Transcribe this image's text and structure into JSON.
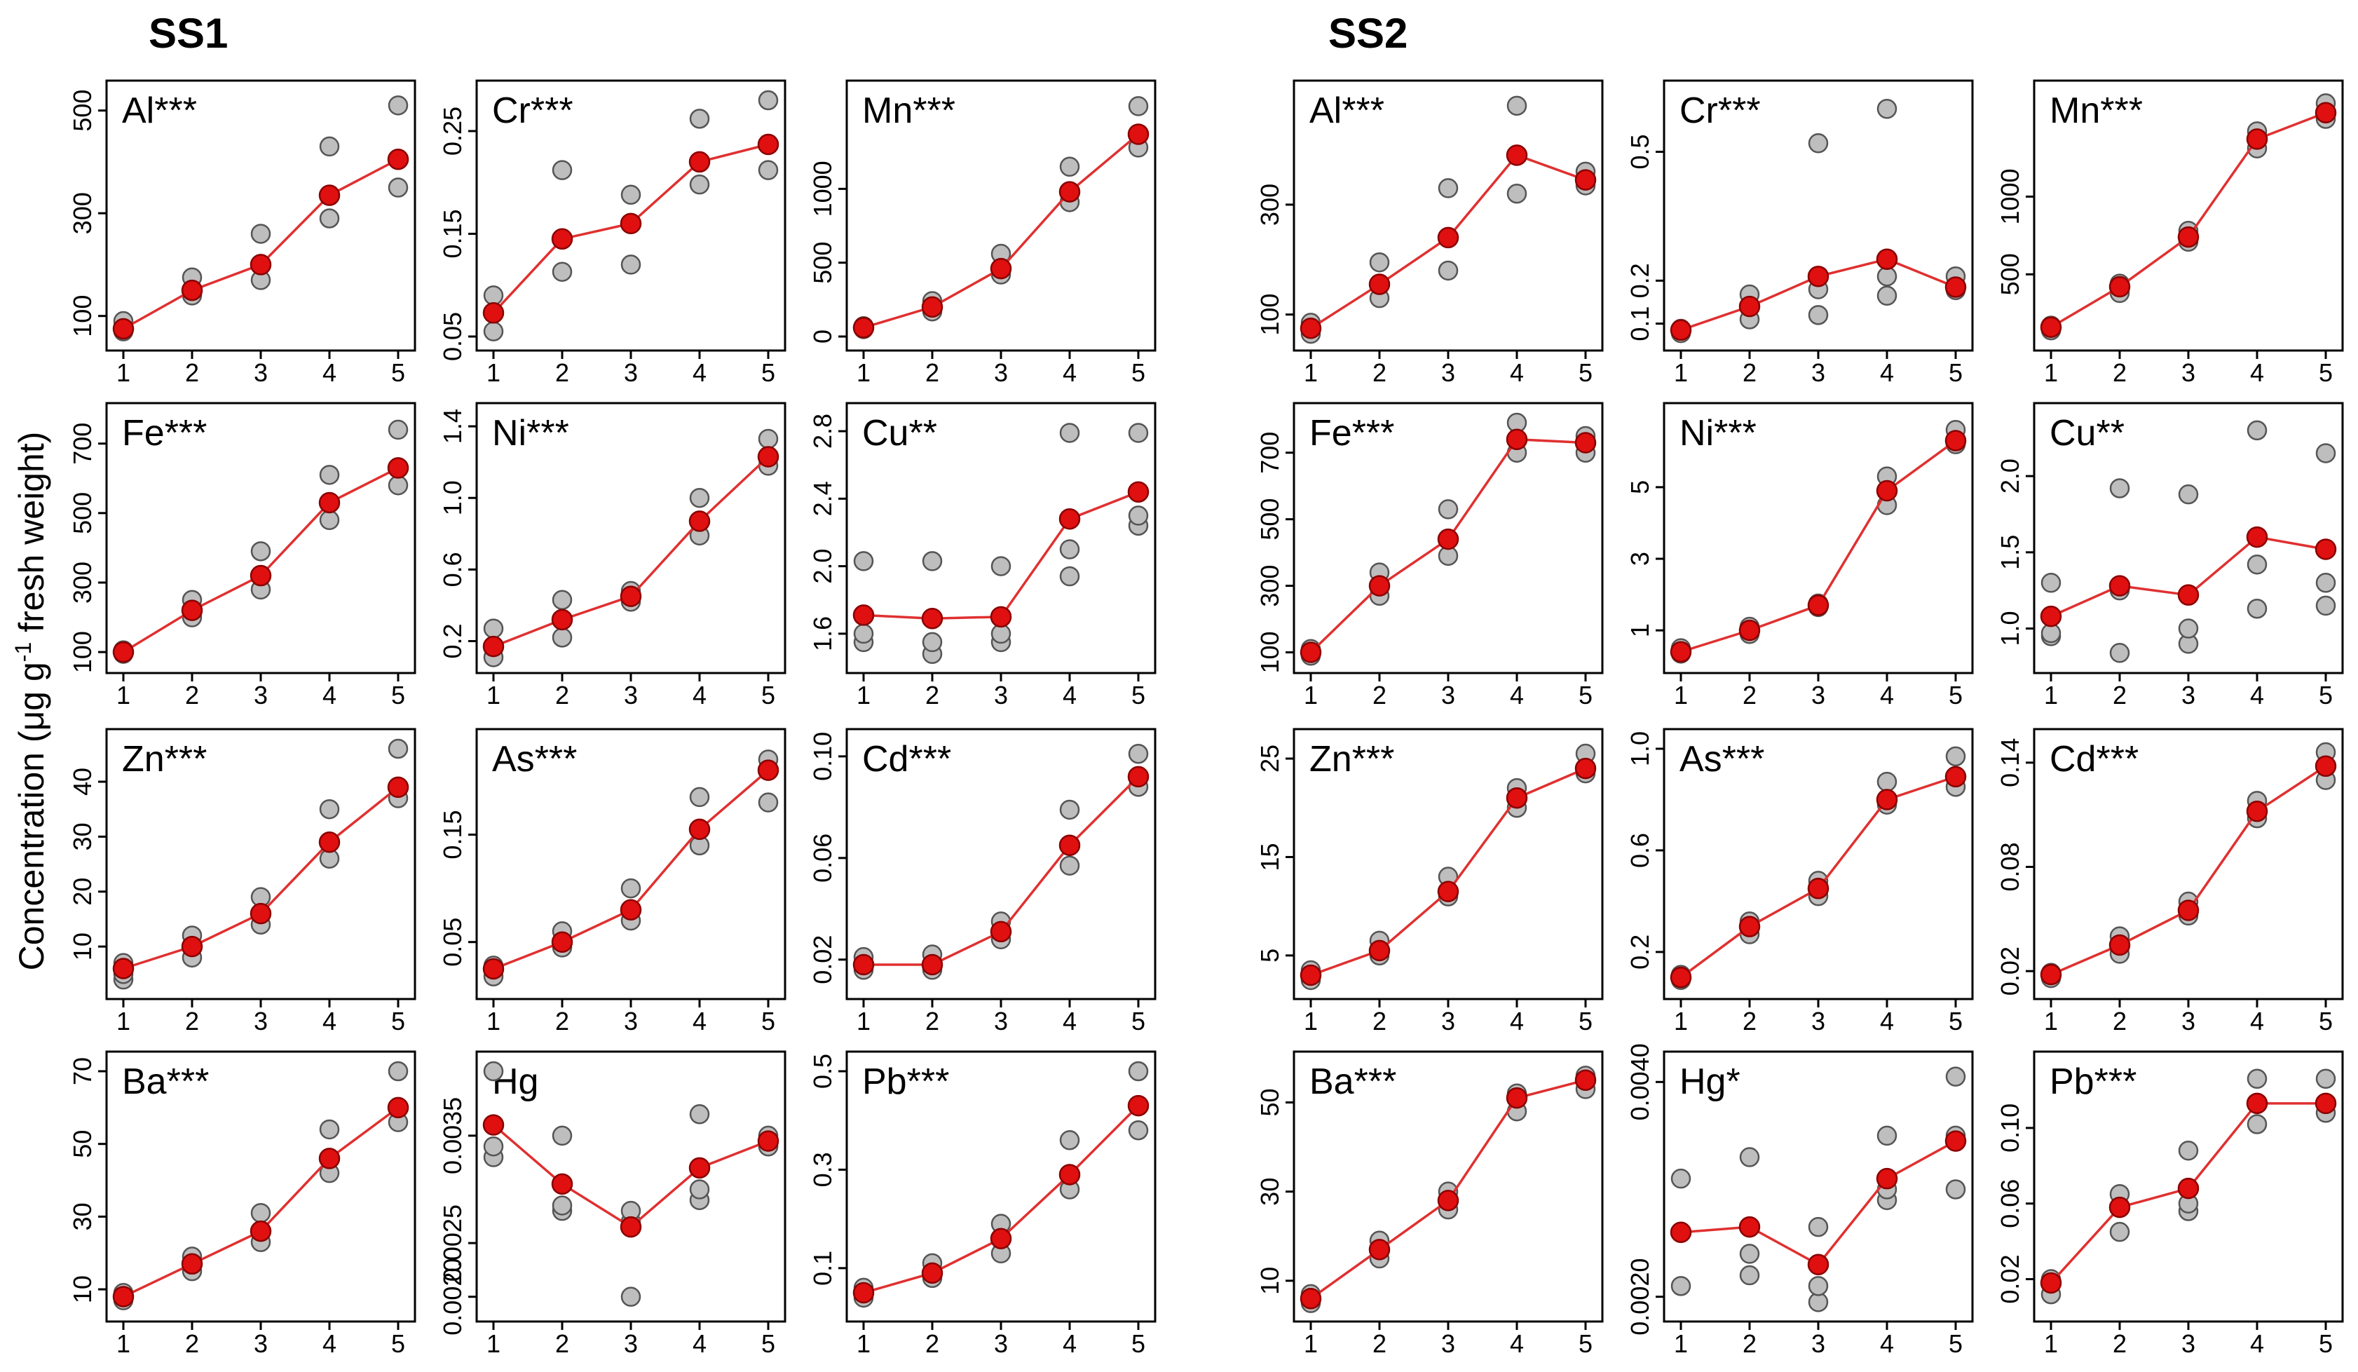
{
  "figure": {
    "ylabel": "Concentration (μg g",
    "ylabel_sup": "-1",
    "ylabel_tail": " fresh  weight)",
    "set_titles": [
      "SS1",
      "SS2"
    ]
  },
  "colors": {
    "replicate_fill": "#bebebe",
    "replicate_stroke": "#555555",
    "mean_fill": "#e01010",
    "mean_stroke": "#8a0000",
    "line": "#e03030",
    "axis": "#000000"
  },
  "chart_data": [
    {
      "set": "SS1",
      "type": "line",
      "title": "Al",
      "sig": "***",
      "categories": [
        "1",
        "2",
        "3",
        "4",
        "5"
      ],
      "ylim": [
        60,
        520
      ],
      "yticks": [
        100,
        300,
        500
      ],
      "mean": [
        75,
        150,
        200,
        335,
        405
      ],
      "points": [
        [
          70,
          80,
          90
        ],
        [
          140,
          150,
          175
        ],
        [
          170,
          200,
          260
        ],
        [
          290,
          335,
          430
        ],
        [
          350,
          405,
          510
        ]
      ]
    },
    {
      "set": "SS1",
      "type": "line",
      "title": "Cr",
      "sig": "***",
      "categories": [
        "1",
        "2",
        "3",
        "4",
        "5"
      ],
      "ylim": [
        0.05,
        0.28
      ],
      "yticks": [
        0.05,
        0.15,
        0.25
      ],
      "ytick_labels": [
        "0.05",
        "0.15",
        "0.25"
      ],
      "mean": [
        0.073,
        0.145,
        0.16,
        0.22,
        0.237
      ],
      "points": [
        [
          0.055,
          0.073,
          0.09
        ],
        [
          0.113,
          0.145,
          0.212
        ],
        [
          0.12,
          0.16,
          0.188
        ],
        [
          0.198,
          0.22,
          0.262
        ],
        [
          0.212,
          0.237,
          0.28
        ]
      ]
    },
    {
      "set": "SS1",
      "type": "line",
      "title": "Mn",
      "sig": "***",
      "categories": [
        "1",
        "2",
        "3",
        "4",
        "5"
      ],
      "ylim": [
        0,
        1600
      ],
      "yticks": [
        0,
        500,
        1000
      ],
      "mean": [
        60,
        200,
        460,
        980,
        1370
      ],
      "points": [
        [
          50,
          60,
          70
        ],
        [
          170,
          200,
          240
        ],
        [
          420,
          460,
          560
        ],
        [
          910,
          980,
          1150
        ],
        [
          1280,
          1370,
          1560
        ]
      ]
    },
    {
      "set": "SS1",
      "type": "line",
      "title": "Fe",
      "sig": "***",
      "categories": [
        "1",
        "2",
        "3",
        "4",
        "5"
      ],
      "ylim": [
        80,
        760
      ],
      "yticks": [
        100,
        300,
        500,
        700
      ],
      "mean": [
        100,
        220,
        320,
        530,
        630
      ],
      "points": [
        [
          95,
          100,
          105
        ],
        [
          200,
          220,
          250
        ],
        [
          280,
          320,
          390
        ],
        [
          480,
          530,
          610
        ],
        [
          580,
          630,
          740
        ]
      ]
    },
    {
      "set": "SS1",
      "type": "line",
      "title": "Ni",
      "sig": "***",
      "categories": [
        "1",
        "2",
        "3",
        "4",
        "5"
      ],
      "ylim": [
        0.1,
        1.42
      ],
      "yticks": [
        0.2,
        0.6,
        1.0,
        1.4
      ],
      "ytick_labels": [
        "0.2",
        "0.6",
        "1.0",
        "1.4"
      ],
      "mean": [
        0.17,
        0.32,
        0.45,
        0.87,
        1.23
      ],
      "points": [
        [
          0.11,
          0.17,
          0.27
        ],
        [
          0.22,
          0.32,
          0.43
        ],
        [
          0.42,
          0.45,
          0.48
        ],
        [
          0.79,
          0.87,
          1.0
        ],
        [
          1.18,
          1.23,
          1.33
        ]
      ]
    },
    {
      "set": "SS1",
      "type": "line",
      "title": "Cu",
      "sig": "**",
      "categories": [
        "1",
        "2",
        "3",
        "4",
        "5"
      ],
      "ylim": [
        1.45,
        2.85
      ],
      "yticks": [
        1.6,
        2.0,
        2.4,
        2.8
      ],
      "ytick_labels": [
        "1.6",
        "2.0",
        "2.4",
        "2.8"
      ],
      "mean": [
        1.71,
        1.69,
        1.7,
        2.28,
        2.44
      ],
      "points": [
        [
          1.55,
          1.6,
          2.03
        ],
        [
          1.48,
          1.55,
          2.03
        ],
        [
          1.55,
          1.6,
          2.0
        ],
        [
          1.94,
          2.1,
          2.79
        ],
        [
          2.24,
          2.3,
          2.79
        ]
      ]
    },
    {
      "set": "SS1",
      "type": "line",
      "title": "Zn",
      "sig": "***",
      "categories": [
        "1",
        "2",
        "3",
        "4",
        "5"
      ],
      "ylim": [
        3,
        46
      ],
      "yticks": [
        10,
        20,
        30,
        40
      ],
      "mean": [
        6,
        10,
        16,
        29,
        39
      ],
      "points": [
        [
          4,
          5,
          7
        ],
        [
          8,
          10,
          12
        ],
        [
          14,
          16,
          19
        ],
        [
          26,
          29,
          35
        ],
        [
          37,
          39,
          46
        ]
      ]
    },
    {
      "set": "SS1",
      "type": "line",
      "title": "As",
      "sig": "***",
      "categories": [
        "1",
        "2",
        "3",
        "4",
        "5"
      ],
      "ylim": [
        0.01,
        0.23
      ],
      "yticks": [
        0.05,
        0.15
      ],
      "ytick_labels": [
        "0.05",
        "0.15"
      ],
      "mean": [
        0.025,
        0.05,
        0.08,
        0.155,
        0.21
      ],
      "points": [
        [
          0.018,
          0.025,
          0.028
        ],
        [
          0.045,
          0.05,
          0.06
        ],
        [
          0.07,
          0.08,
          0.1
        ],
        [
          0.14,
          0.155,
          0.185
        ],
        [
          0.18,
          0.21,
          0.22
        ]
      ]
    },
    {
      "set": "SS1",
      "type": "line",
      "title": "Cd",
      "sig": "***",
      "categories": [
        "1",
        "2",
        "3",
        "4",
        "5"
      ],
      "ylim": [
        0.01,
        0.103
      ],
      "yticks": [
        0.02,
        0.06,
        0.1
      ],
      "ytick_labels": [
        "0.02",
        "0.06",
        "0.10"
      ],
      "mean": [
        0.018,
        0.018,
        0.031,
        0.065,
        0.092
      ],
      "points": [
        [
          0.016,
          0.018,
          0.021
        ],
        [
          0.016,
          0.018,
          0.022
        ],
        [
          0.028,
          0.031,
          0.035
        ],
        [
          0.057,
          0.065,
          0.079
        ],
        [
          0.088,
          0.092,
          0.101
        ]
      ]
    },
    {
      "set": "SS1",
      "type": "line",
      "title": "Ba",
      "sig": "***",
      "categories": [
        "1",
        "2",
        "3",
        "4",
        "5"
      ],
      "ylim": [
        5,
        70
      ],
      "yticks": [
        10,
        30,
        50,
        70
      ],
      "mean": [
        8,
        17,
        26,
        46,
        60
      ],
      "points": [
        [
          7,
          8,
          9
        ],
        [
          15,
          17,
          19
        ],
        [
          23,
          26,
          31
        ],
        [
          42,
          46,
          54
        ],
        [
          56,
          60,
          70
        ]
      ]
    },
    {
      "set": "SS1",
      "type": "line",
      "title": "Hg",
      "sig": "",
      "categories": [
        "1",
        "2",
        "3",
        "4",
        "5"
      ],
      "ylim": [
        0.0019,
        0.0041
      ],
      "yticks": [
        0.002,
        0.0025,
        0.0035
      ],
      "ytick_labels": [
        "0.0020",
        "0.0025",
        "0.0035"
      ],
      "mean": [
        0.0036,
        0.00305,
        0.00265,
        0.0032,
        0.00345
      ],
      "points": [
        [
          0.0033,
          0.0034,
          0.0041
        ],
        [
          0.0028,
          0.00285,
          0.0035
        ],
        [
          0.002,
          0.0027,
          0.0028
        ],
        [
          0.0029,
          0.003,
          0.0037
        ],
        [
          0.0034,
          0.0034,
          0.0035
        ]
      ]
    },
    {
      "set": "SS1",
      "type": "line",
      "title": "Pb",
      "sig": "***",
      "categories": [
        "1",
        "2",
        "3",
        "4",
        "5"
      ],
      "ylim": [
        0.02,
        0.5
      ],
      "yticks": [
        0.1,
        0.3,
        0.5
      ],
      "ytick_labels": [
        "0.1",
        "0.3",
        "0.5"
      ],
      "mean": [
        0.05,
        0.09,
        0.16,
        0.29,
        0.43
      ],
      "points": [
        [
          0.04,
          0.05,
          0.06
        ],
        [
          0.08,
          0.09,
          0.11
        ],
        [
          0.13,
          0.16,
          0.19
        ],
        [
          0.26,
          0.29,
          0.36
        ],
        [
          0.38,
          0.43,
          0.5
        ]
      ]
    },
    {
      "set": "SS2",
      "type": "line",
      "title": "Al",
      "sig": "***",
      "categories": [
        "1",
        "2",
        "3",
        "4",
        "5"
      ],
      "ylim": [
        60,
        490
      ],
      "yticks": [
        100,
        300
      ],
      "mean": [
        75,
        155,
        240,
        390,
        345
      ],
      "points": [
        [
          65,
          75,
          85
        ],
        [
          130,
          155,
          195
        ],
        [
          180,
          240,
          330
        ],
        [
          320,
          390,
          480
        ],
        [
          335,
          345,
          360
        ]
      ]
    },
    {
      "set": "SS2",
      "type": "line",
      "title": "Cr",
      "sig": "***",
      "categories": [
        "1",
        "2",
        "3",
        "4",
        "5"
      ],
      "ylim": [
        0.07,
        0.62
      ],
      "yticks": [
        0.1,
        0.2,
        0.5
      ],
      "ytick_labels": [
        "0.1",
        "0.2",
        "0.5"
      ],
      "mean": [
        0.085,
        0.14,
        0.21,
        0.25,
        0.185
      ],
      "points": [
        [
          0.078,
          0.085,
          0.088
        ],
        [
          0.11,
          0.14,
          0.168
        ],
        [
          0.12,
          0.18,
          0.52
        ],
        [
          0.165,
          0.21,
          0.6
        ],
        [
          0.178,
          0.185,
          0.21
        ]
      ]
    },
    {
      "set": "SS2",
      "type": "line",
      "title": "Mn",
      "sig": "***",
      "categories": [
        "1",
        "2",
        "3",
        "4",
        "5"
      ],
      "ylim": [
        100,
        1620
      ],
      "yticks": [
        500,
        1000
      ],
      "mean": [
        160,
        420,
        740,
        1370,
        1540
      ],
      "points": [
        [
          140,
          160,
          170
        ],
        [
          380,
          420,
          440
        ],
        [
          710,
          740,
          780
        ],
        [
          1310,
          1370,
          1420
        ],
        [
          1500,
          1540,
          1600
        ]
      ]
    },
    {
      "set": "SS2",
      "type": "line",
      "title": "Fe",
      "sig": "***",
      "categories": [
        "1",
        "2",
        "3",
        "4",
        "5"
      ],
      "ylim": [
        80,
        790
      ],
      "yticks": [
        100,
        300,
        500,
        700
      ],
      "mean": [
        100,
        300,
        440,
        740,
        730
      ],
      "points": [
        [
          90,
          100,
          110
        ],
        [
          270,
          300,
          340
        ],
        [
          390,
          440,
          530
        ],
        [
          700,
          740,
          790
        ],
        [
          700,
          730,
          750
        ]
      ]
    },
    {
      "set": "SS2",
      "type": "line",
      "title": "Ni",
      "sig": "***",
      "categories": [
        "1",
        "2",
        "3",
        "4",
        "5"
      ],
      "ylim": [
        0.2,
        6.8
      ],
      "yticks": [
        1,
        3,
        5
      ],
      "mean": [
        0.4,
        1.0,
        1.7,
        4.9,
        6.3
      ],
      "points": [
        [
          0.35,
          0.4,
          0.5
        ],
        [
          0.9,
          1.0,
          1.1
        ],
        [
          1.65,
          1.7,
          1.75
        ],
        [
          4.5,
          4.9,
          5.3
        ],
        [
          6.2,
          6.3,
          6.6
        ]
      ]
    },
    {
      "set": "SS2",
      "type": "line",
      "title": "Cu",
      "sig": "**",
      "categories": [
        "1",
        "2",
        "3",
        "4",
        "5"
      ],
      "ylim": [
        0.8,
        2.35
      ],
      "yticks": [
        1.0,
        1.5,
        2.0
      ],
      "ytick_labels": [
        "1.0",
        "1.5",
        "2.0"
      ],
      "mean": [
        1.08,
        1.28,
        1.22,
        1.6,
        1.52
      ],
      "points": [
        [
          0.95,
          0.97,
          1.3
        ],
        [
          0.84,
          1.25,
          1.92
        ],
        [
          0.9,
          1.0,
          1.88
        ],
        [
          1.13,
          1.42,
          2.3
        ],
        [
          1.15,
          1.3,
          2.15
        ]
      ]
    },
    {
      "set": "SS2",
      "type": "line",
      "title": "Zn",
      "sig": "***",
      "categories": [
        "1",
        "2",
        "3",
        "4",
        "5"
      ],
      "ylim": [
        2,
        26
      ],
      "yticks": [
        5,
        15,
        25
      ],
      "mean": [
        3,
        5.5,
        11.5,
        21,
        24
      ],
      "points": [
        [
          2.5,
          3,
          3.5
        ],
        [
          5,
          5.5,
          6.5
        ],
        [
          11,
          11.5,
          13
        ],
        [
          20,
          21,
          22
        ],
        [
          23.5,
          24,
          25.5
        ]
      ]
    },
    {
      "set": "SS2",
      "type": "line",
      "title": "As",
      "sig": "***",
      "categories": [
        "1",
        "2",
        "3",
        "4",
        "5"
      ],
      "ylim": [
        0.07,
        1.0
      ],
      "yticks": [
        0.2,
        0.6,
        1.0
      ],
      "ytick_labels": [
        "0.2",
        "0.6",
        "1.0"
      ],
      "mean": [
        0.1,
        0.3,
        0.45,
        0.8,
        0.89
      ],
      "points": [
        [
          0.09,
          0.1,
          0.11
        ],
        [
          0.27,
          0.3,
          0.32
        ],
        [
          0.42,
          0.45,
          0.48
        ],
        [
          0.78,
          0.8,
          0.87
        ],
        [
          0.85,
          0.89,
          0.97
        ]
      ]
    },
    {
      "set": "SS2",
      "type": "line",
      "title": "Cd",
      "sig": "***",
      "categories": [
        "1",
        "2",
        "3",
        "4",
        "5"
      ],
      "ylim": [
        0.012,
        0.148
      ],
      "yticks": [
        0.02,
        0.08,
        0.14
      ],
      "ytick_labels": [
        "0.02",
        "0.08",
        "0.14"
      ],
      "mean": [
        0.018,
        0.035,
        0.055,
        0.112,
        0.138
      ],
      "points": [
        [
          0.016,
          0.018,
          0.019
        ],
        [
          0.03,
          0.035,
          0.04
        ],
        [
          0.052,
          0.055,
          0.06
        ],
        [
          0.108,
          0.112,
          0.118
        ],
        [
          0.13,
          0.138,
          0.146
        ]
      ]
    },
    {
      "set": "SS2",
      "type": "line",
      "title": "Ba",
      "sig": "***",
      "categories": [
        "1",
        "2",
        "3",
        "4",
        "5"
      ],
      "ylim": [
        4,
        57
      ],
      "yticks": [
        10,
        30,
        50
      ],
      "mean": [
        6,
        17,
        28,
        51,
        55
      ],
      "points": [
        [
          5,
          6,
          7
        ],
        [
          15,
          17,
          19
        ],
        [
          26,
          28,
          30
        ],
        [
          48,
          51,
          52
        ],
        [
          53,
          55,
          56
        ]
      ]
    },
    {
      "set": "SS2",
      "type": "line",
      "title": "Hg",
      "sig": "*",
      "categories": [
        "1",
        "2",
        "3",
        "4",
        "5"
      ],
      "ylim": [
        0.0019,
        0.0041
      ],
      "yticks": [
        0.002,
        0.004
      ],
      "ytick_labels": [
        "0.0020",
        "0.0040"
      ],
      "mean": [
        0.0026,
        0.00265,
        0.0023,
        0.0031,
        0.00345
      ],
      "points": [
        [
          0.0021,
          0.0026,
          0.0031
        ],
        [
          0.0022,
          0.0024,
          0.0033
        ],
        [
          0.00195,
          0.0021,
          0.00265
        ],
        [
          0.0029,
          0.003,
          0.0035
        ],
        [
          0.003,
          0.0035,
          0.00405
        ]
      ]
    },
    {
      "set": "SS2",
      "type": "line",
      "title": "Pb",
      "sig": "***",
      "categories": [
        "1",
        "2",
        "3",
        "4",
        "5"
      ],
      "ylim": [
        0.005,
        0.13
      ],
      "yticks": [
        0.02,
        0.06,
        0.1
      ],
      "ytick_labels": [
        "0.02",
        "0.06",
        "0.10"
      ],
      "mean": [
        0.018,
        0.058,
        0.068,
        0.113,
        0.113
      ],
      "points": [
        [
          0.012,
          0.018,
          0.02
        ],
        [
          0.045,
          0.058,
          0.065
        ],
        [
          0.056,
          0.06,
          0.088
        ],
        [
          0.102,
          0.113,
          0.126
        ],
        [
          0.108,
          0.113,
          0.126
        ]
      ]
    }
  ]
}
